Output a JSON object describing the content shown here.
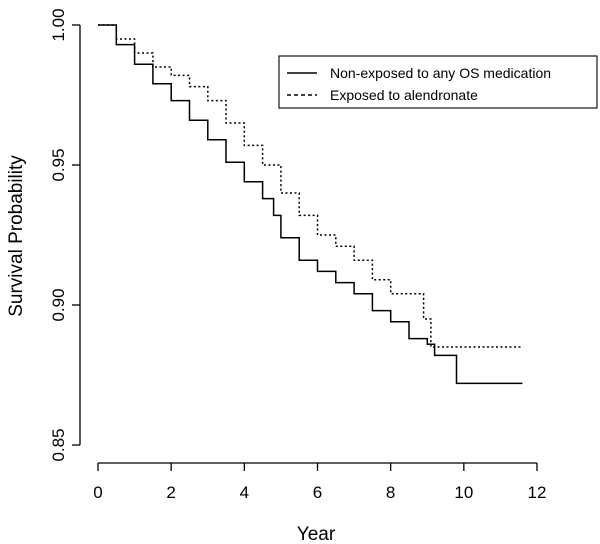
{
  "chart_data": {
    "type": "line",
    "subtype": "step",
    "title": "",
    "xlabel": "Year",
    "ylabel": "Survival Probability",
    "xlim": [
      0,
      12
    ],
    "ylim": [
      0.85,
      1.0
    ],
    "x_ticks": [
      "0",
      "2",
      "4",
      "6",
      "8",
      "10",
      "12"
    ],
    "y_ticks": [
      "0.85",
      "0.90",
      "0.95",
      "1.00"
    ],
    "grid": false,
    "legend_position": "top-right",
    "series": [
      {
        "name": "Non-exposed to any OS medication",
        "line_style": "solid",
        "color": "#000000",
        "x": [
          0,
          0.5,
          1,
          1.5,
          2,
          2.5,
          3,
          3.5,
          4,
          4.5,
          4.8,
          5,
          5.5,
          6,
          6.5,
          7,
          7.5,
          8,
          8.5,
          9,
          9.2,
          9.8,
          11.6
        ],
        "y": [
          1.0,
          0.993,
          0.986,
          0.979,
          0.973,
          0.966,
          0.959,
          0.951,
          0.944,
          0.938,
          0.932,
          0.924,
          0.916,
          0.912,
          0.908,
          0.904,
          0.898,
          0.894,
          0.888,
          0.886,
          0.882,
          0.872,
          0.872
        ]
      },
      {
        "name": "Exposed to alendronate",
        "line_style": "dotted",
        "color": "#000000",
        "x": [
          0,
          0.5,
          1,
          1.5,
          2,
          2.5,
          3,
          3.5,
          4,
          4.5,
          5,
          5.5,
          6,
          6.5,
          7,
          7.5,
          8,
          8.5,
          8.9,
          9.1,
          11.6
        ],
        "y": [
          1.0,
          0.995,
          0.99,
          0.985,
          0.982,
          0.978,
          0.973,
          0.965,
          0.957,
          0.95,
          0.94,
          0.932,
          0.925,
          0.921,
          0.916,
          0.909,
          0.904,
          0.904,
          0.895,
          0.885,
          0.885
        ]
      }
    ]
  }
}
